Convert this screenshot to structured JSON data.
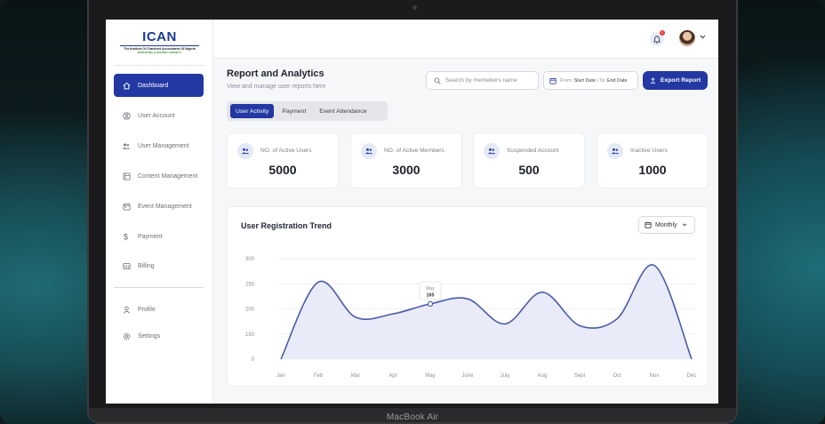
{
  "device": {
    "label": "MacBook Air"
  },
  "logo": {
    "mark": "ICAN",
    "line1": "The Institute Of Chartered Accountants Of Nigeria",
    "line2": "BURUKURU & DISTRICT SOCIETY"
  },
  "sidebar": {
    "items": [
      {
        "label": "Dashboard",
        "icon": "home-icon",
        "active": true
      },
      {
        "label": "User Account",
        "icon": "user-circle-icon"
      },
      {
        "label": "User Management",
        "icon": "users-icon"
      },
      {
        "label": "Content Management",
        "icon": "content-icon"
      },
      {
        "label": "Event Management",
        "icon": "calendar-icon"
      },
      {
        "label": "Payment",
        "icon": "dollar-icon"
      },
      {
        "label": "Billing",
        "icon": "billing-icon"
      }
    ],
    "bottom": [
      {
        "label": "Profile",
        "icon": "profile-icon"
      },
      {
        "label": "Settings",
        "icon": "gear-icon"
      }
    ]
  },
  "header": {
    "notification_count": "1"
  },
  "page": {
    "title": "Report and Analytics",
    "subtitle": "View and manage user reports here",
    "search_placeholder": "Search by memebers name",
    "date_from_label": "From",
    "date_from_value": "Start Date",
    "date_to_label": "To",
    "date_to_value": "End Date",
    "export_label": "Export Report"
  },
  "tabs": [
    {
      "label": "User Activity",
      "active": true
    },
    {
      "label": "Payment"
    },
    {
      "label": "Event Attendance"
    }
  ],
  "stats": [
    {
      "label": "NO. of Active Users",
      "value": "5000"
    },
    {
      "label": "NO. of Active Members",
      "value": "3000"
    },
    {
      "label": "Suspended Account",
      "value": "500"
    },
    {
      "label": "Inactive Users",
      "value": "1000"
    }
  ],
  "chart_card": {
    "title": "User Registration Trend",
    "period": "Monthly"
  },
  "chart_data": {
    "type": "area",
    "categories": [
      "Jan",
      "Feb",
      "Mar",
      "Apr",
      "May",
      "June",
      "July",
      "Aug",
      "Sept",
      "Oct",
      "Nov",
      "Dec"
    ],
    "values": [
      0,
      230,
      125,
      135,
      165,
      180,
      105,
      200,
      100,
      120,
      280,
      0
    ],
    "yticks": [
      "300",
      "250",
      "200",
      "150",
      "0"
    ],
    "ylim": [
      0,
      300
    ],
    "tooltip": {
      "category": "May",
      "value": "165"
    },
    "line_color": "#4a5ca8",
    "fill_color": "#e9ebf8",
    "grid": true
  },
  "colors": {
    "primary": "#2338a2",
    "bg": "#f6f7f9"
  }
}
